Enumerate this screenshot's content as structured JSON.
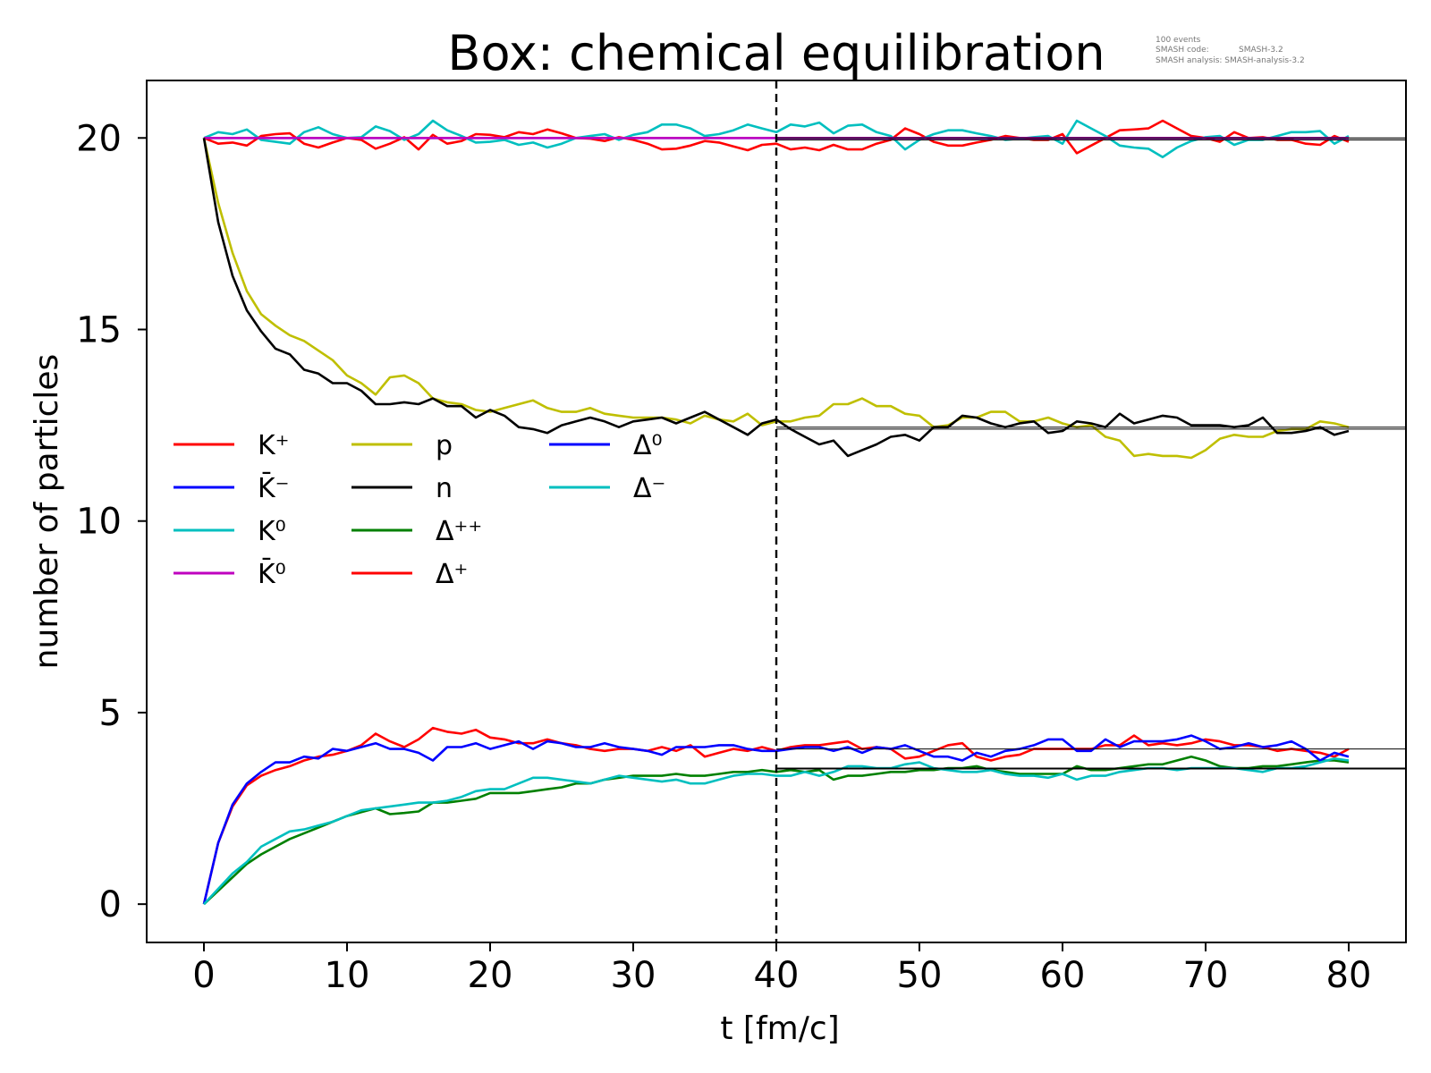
{
  "chart_data": {
    "type": "line",
    "title": "Box: chemical equilibration",
    "xlabel": "t [fm/c]",
    "ylabel": "number of particles",
    "xlim": [
      -4,
      84
    ],
    "ylim": [
      -1,
      21.5
    ],
    "xticks": [
      0,
      10,
      20,
      30,
      40,
      50,
      60,
      70,
      80
    ],
    "yticks": [
      0,
      5,
      10,
      15,
      20
    ],
    "grid": false,
    "legend_position": "center-left",
    "legend_columns": 3,
    "annotation_lines": [
      "100 events",
      "SMASH code:",
      "SMASH-3.2",
      "SMASH analysis: SMASH-analysis-3.2"
    ],
    "reference_lines": {
      "vertical_dashed_x": 40,
      "horizontal_levels": [
        20.0,
        19.95,
        12.45,
        12.4,
        4.05,
        3.55,
        3.53
      ]
    },
    "x": [
      0,
      1,
      2,
      3,
      4,
      5,
      6,
      7,
      8,
      9,
      10,
      11,
      12,
      13,
      14,
      15,
      16,
      17,
      18,
      19,
      20,
      21,
      22,
      23,
      24,
      25,
      26,
      27,
      28,
      29,
      30,
      31,
      32,
      33,
      34,
      35,
      36,
      37,
      38,
      39,
      40,
      41,
      42,
      43,
      44,
      45,
      46,
      47,
      48,
      49,
      50,
      51,
      52,
      53,
      54,
      55,
      56,
      57,
      58,
      59,
      60,
      61,
      62,
      63,
      64,
      65,
      66,
      67,
      68,
      69,
      70,
      71,
      72,
      73,
      74,
      75,
      76,
      77,
      78,
      79,
      80
    ],
    "series": [
      {
        "name": "K⁺",
        "color": "#ff0000",
        "values": [
          20.0,
          19.85,
          19.88,
          19.8,
          20.05,
          20.1,
          20.12,
          19.85,
          19.75,
          19.88,
          20.0,
          19.95,
          19.72,
          19.85,
          20.02,
          19.7,
          20.08,
          19.85,
          19.92,
          20.1,
          20.08,
          20.02,
          20.15,
          20.1,
          20.22,
          20.12,
          20.0,
          19.98,
          19.92,
          20.02,
          19.95,
          19.85,
          19.7,
          19.72,
          19.8,
          19.92,
          19.88,
          19.78,
          19.68,
          19.82,
          19.85,
          19.7,
          19.75,
          19.68,
          19.82,
          19.7,
          19.7,
          19.85,
          19.95,
          20.25,
          20.1,
          19.9,
          19.8,
          19.8,
          19.88,
          19.95,
          20.05,
          20.0,
          19.95,
          19.95,
          20.1,
          19.6,
          19.8,
          20.0,
          20.2,
          20.22,
          20.25,
          20.45,
          20.25,
          20.05,
          20.0,
          19.9,
          20.15,
          20.0,
          20.02,
          19.95,
          19.95,
          19.85,
          19.82,
          20.05,
          19.9
        ]
      },
      {
        "name": "K̄⁻",
        "color": "#0000ff",
        "values": [
          20.0,
          20.0,
          20.0,
          20.0,
          20.0,
          20.0,
          20.0,
          20.0,
          20.0,
          20.0,
          20.0,
          20.0,
          20.0,
          20.0,
          20.0,
          20.0,
          20.0,
          20.0,
          20.0,
          20.0,
          20.0,
          20.0,
          20.0,
          20.0,
          20.0,
          20.0,
          20.0,
          20.0,
          20.0,
          20.0,
          20.0,
          20.0,
          20.0,
          20.0,
          20.0,
          20.0,
          20.0,
          20.0,
          20.0,
          20.0,
          20.0,
          20.0,
          20.0,
          20.0,
          20.0,
          20.0,
          20.0,
          20.0,
          20.0,
          20.0,
          20.0,
          20.0,
          20.0,
          20.0,
          20.0,
          20.0,
          20.0,
          20.0,
          20.0,
          20.0,
          20.0,
          20.0,
          20.0,
          20.0,
          20.0,
          20.0,
          20.0,
          20.0,
          20.0,
          20.0,
          20.0,
          20.0,
          20.0,
          20.0,
          20.0,
          20.0,
          20.0,
          20.0,
          20.0,
          20.0,
          20.0
        ]
      },
      {
        "name": "K⁰",
        "color": "#00bfbf",
        "values": [
          20.0,
          20.15,
          20.1,
          20.22,
          19.95,
          19.9,
          19.85,
          20.15,
          20.28,
          20.1,
          20.0,
          20.02,
          20.3,
          20.18,
          19.95,
          20.1,
          20.45,
          20.2,
          20.05,
          19.88,
          19.9,
          19.95,
          19.82,
          19.88,
          19.75,
          19.85,
          20.0,
          20.05,
          20.1,
          19.95,
          20.08,
          20.15,
          20.35,
          20.35,
          20.25,
          20.05,
          20.1,
          20.2,
          20.35,
          20.25,
          20.15,
          20.35,
          20.3,
          20.4,
          20.12,
          20.32,
          20.35,
          20.15,
          20.05,
          19.7,
          19.95,
          20.1,
          20.2,
          20.2,
          20.12,
          20.05,
          19.95,
          19.98,
          20.02,
          20.05,
          19.85,
          20.45,
          20.25,
          20.05,
          19.8,
          19.75,
          19.72,
          19.5,
          19.75,
          19.92,
          20.02,
          20.05,
          19.82,
          19.95,
          19.95,
          20.05,
          20.15,
          20.15,
          20.18,
          19.85,
          20.05
        ]
      },
      {
        "name": "K̄⁰",
        "color": "#bf00bf",
        "values": [
          20.0,
          20.0,
          20.0,
          20.0,
          20.0,
          20.0,
          20.0,
          20.0,
          20.0,
          20.0,
          20.0,
          20.0,
          20.0,
          20.0,
          20.0,
          20.0,
          20.0,
          20.0,
          20.0,
          20.0,
          20.0,
          20.0,
          20.0,
          20.0,
          20.0,
          20.0,
          20.0,
          20.0,
          20.0,
          20.0,
          20.0,
          20.0,
          20.0,
          20.0,
          20.0,
          20.0,
          20.0,
          20.0,
          20.0,
          20.0,
          20.0,
          20.0,
          20.0,
          20.0,
          20.0,
          20.0,
          20.0,
          20.0,
          20.0,
          20.0,
          20.0,
          20.0,
          20.0,
          20.0,
          20.0,
          20.0,
          20.0,
          20.0,
          20.0,
          20.0,
          20.0,
          20.0,
          20.0,
          20.0,
          20.0,
          20.0,
          20.0,
          20.0,
          20.0,
          20.0,
          20.0,
          20.0,
          20.0,
          20.0,
          20.0,
          20.0,
          20.0,
          20.0,
          20.0,
          20.0,
          20.0
        ]
      },
      {
        "name": "p",
        "color": "#bfbf00",
        "values": [
          20.0,
          18.3,
          17.0,
          16.0,
          15.4,
          15.1,
          14.85,
          14.7,
          14.45,
          14.2,
          13.8,
          13.6,
          13.3,
          13.75,
          13.8,
          13.6,
          13.2,
          13.1,
          13.05,
          12.9,
          12.85,
          12.95,
          13.05,
          13.15,
          12.95,
          12.85,
          12.85,
          12.95,
          12.8,
          12.75,
          12.7,
          12.7,
          12.7,
          12.65,
          12.55,
          12.75,
          12.65,
          12.6,
          12.8,
          12.5,
          12.6,
          12.6,
          12.7,
          12.75,
          13.05,
          13.05,
          13.2,
          13.0,
          13.0,
          12.8,
          12.75,
          12.45,
          12.5,
          12.7,
          12.7,
          12.85,
          12.85,
          12.6,
          12.6,
          12.7,
          12.55,
          12.45,
          12.5,
          12.2,
          12.1,
          11.7,
          11.75,
          11.7,
          11.7,
          11.65,
          11.85,
          12.15,
          12.25,
          12.2,
          12.2,
          12.35,
          12.4,
          12.4,
          12.6,
          12.55,
          12.45
        ]
      },
      {
        "name": "n",
        "color": "#000000",
        "values": [
          20.0,
          17.8,
          16.4,
          15.5,
          14.95,
          14.5,
          14.35,
          13.95,
          13.85,
          13.6,
          13.6,
          13.4,
          13.05,
          13.05,
          13.1,
          13.05,
          13.2,
          13.0,
          13.0,
          12.7,
          12.9,
          12.75,
          12.45,
          12.4,
          12.3,
          12.5,
          12.6,
          12.7,
          12.6,
          12.45,
          12.6,
          12.65,
          12.7,
          12.55,
          12.7,
          12.85,
          12.65,
          12.45,
          12.25,
          12.55,
          12.65,
          12.4,
          12.2,
          12.0,
          12.1,
          11.7,
          11.85,
          12.0,
          12.2,
          12.25,
          12.1,
          12.45,
          12.45,
          12.75,
          12.7,
          12.55,
          12.45,
          12.55,
          12.6,
          12.3,
          12.35,
          12.6,
          12.55,
          12.45,
          12.8,
          12.55,
          12.65,
          12.75,
          12.7,
          12.5,
          12.5,
          12.5,
          12.45,
          12.5,
          12.7,
          12.3,
          12.3,
          12.35,
          12.45,
          12.25,
          12.35
        ]
      },
      {
        "name": "Δ⁺⁺",
        "color": "#008000",
        "values": [
          0.0,
          0.35,
          0.7,
          1.05,
          1.3,
          1.5,
          1.7,
          1.85,
          2.0,
          2.15,
          2.3,
          2.4,
          2.5,
          2.35,
          2.38,
          2.42,
          2.65,
          2.65,
          2.7,
          2.75,
          2.9,
          2.9,
          2.9,
          2.95,
          3.0,
          3.05,
          3.15,
          3.15,
          3.25,
          3.3,
          3.35,
          3.35,
          3.35,
          3.4,
          3.35,
          3.35,
          3.4,
          3.45,
          3.45,
          3.5,
          3.45,
          3.5,
          3.45,
          3.5,
          3.25,
          3.35,
          3.35,
          3.4,
          3.45,
          3.45,
          3.5,
          3.5,
          3.55,
          3.55,
          3.6,
          3.5,
          3.45,
          3.4,
          3.4,
          3.4,
          3.4,
          3.6,
          3.5,
          3.5,
          3.55,
          3.6,
          3.65,
          3.65,
          3.75,
          3.85,
          3.75,
          3.6,
          3.55,
          3.55,
          3.6,
          3.6,
          3.65,
          3.7,
          3.75,
          3.75,
          3.7
        ]
      },
      {
        "name": "Δ⁺",
        "color": "#ff0000",
        "values": [
          0.0,
          1.6,
          2.55,
          3.1,
          3.35,
          3.5,
          3.6,
          3.75,
          3.85,
          3.9,
          4.0,
          4.15,
          4.45,
          4.25,
          4.1,
          4.3,
          4.6,
          4.5,
          4.45,
          4.55,
          4.35,
          4.3,
          4.2,
          4.2,
          4.3,
          4.2,
          4.15,
          4.05,
          4.0,
          4.05,
          4.05,
          4.0,
          4.1,
          4.0,
          4.15,
          3.85,
          3.95,
          4.05,
          4.0,
          4.1,
          4.0,
          4.1,
          4.15,
          4.15,
          4.2,
          4.25,
          4.05,
          4.1,
          4.05,
          3.8,
          3.85,
          4.0,
          4.15,
          4.2,
          3.85,
          3.75,
          3.85,
          3.9,
          4.05,
          4.05,
          4.05,
          4.05,
          4.05,
          4.15,
          4.15,
          4.4,
          4.15,
          4.2,
          4.15,
          4.2,
          4.3,
          4.25,
          4.15,
          4.15,
          4.1,
          4.0,
          4.05,
          4.0,
          3.95,
          3.85,
          4.05
        ]
      },
      {
        "name": "Δ⁰",
        "color": "#0000ff",
        "values": [
          0.0,
          1.6,
          2.6,
          3.15,
          3.45,
          3.7,
          3.7,
          3.85,
          3.8,
          4.05,
          4.0,
          4.1,
          4.2,
          4.05,
          4.05,
          3.95,
          3.75,
          4.1,
          4.1,
          4.2,
          4.05,
          4.15,
          4.25,
          4.05,
          4.25,
          4.2,
          4.1,
          4.1,
          4.2,
          4.1,
          4.05,
          4.0,
          3.9,
          4.1,
          4.1,
          4.1,
          4.15,
          4.15,
          4.05,
          4.0,
          4.0,
          4.05,
          4.1,
          4.1,
          4.0,
          4.1,
          3.95,
          4.1,
          4.05,
          4.15,
          4.0,
          3.85,
          3.85,
          3.75,
          3.95,
          3.85,
          4.0,
          4.05,
          4.15,
          4.3,
          4.3,
          4.0,
          4.0,
          4.3,
          4.1,
          4.25,
          4.25,
          4.25,
          4.3,
          4.4,
          4.25,
          4.05,
          4.1,
          4.2,
          4.1,
          4.15,
          4.25,
          4.05,
          3.75,
          3.95,
          3.85
        ]
      },
      {
        "name": "Δ⁻",
        "color": "#00bfbf",
        "values": [
          0.0,
          0.4,
          0.8,
          1.1,
          1.5,
          1.7,
          1.9,
          1.95,
          2.05,
          2.15,
          2.3,
          2.45,
          2.5,
          2.55,
          2.6,
          2.65,
          2.65,
          2.7,
          2.8,
          2.95,
          3.0,
          3.0,
          3.15,
          3.3,
          3.3,
          3.25,
          3.2,
          3.15,
          3.25,
          3.35,
          3.3,
          3.25,
          3.2,
          3.25,
          3.15,
          3.15,
          3.25,
          3.35,
          3.4,
          3.4,
          3.35,
          3.35,
          3.45,
          3.35,
          3.45,
          3.6,
          3.6,
          3.55,
          3.55,
          3.65,
          3.7,
          3.55,
          3.5,
          3.45,
          3.45,
          3.5,
          3.4,
          3.35,
          3.35,
          3.3,
          3.4,
          3.25,
          3.35,
          3.35,
          3.45,
          3.5,
          3.55,
          3.55,
          3.5,
          3.55,
          3.55,
          3.55,
          3.55,
          3.5,
          3.45,
          3.55,
          3.55,
          3.6,
          3.7,
          3.8,
          3.75
        ]
      }
    ]
  }
}
